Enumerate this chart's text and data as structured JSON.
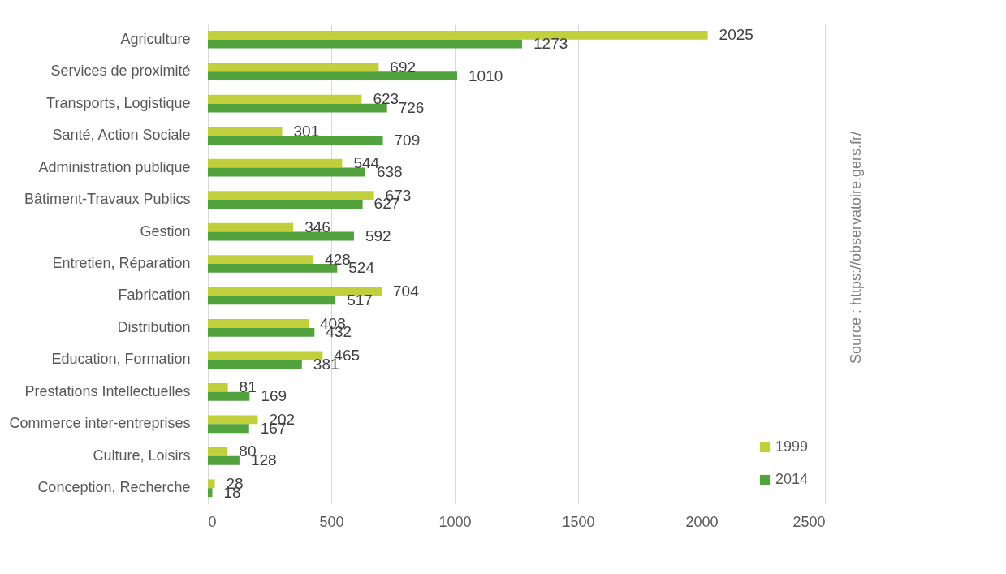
{
  "chart_data": {
    "type": "bar",
    "orientation": "horizontal",
    "categories": [
      "Agriculture",
      "Services de proximité",
      "Transports, Logistique",
      "Santé, Action Sociale",
      "Administration publique",
      "Bâtiment-Travaux Publics",
      "Gestion",
      "Entretien, Réparation",
      "Fabrication",
      "Distribution",
      "Education, Formation",
      "Prestations Intellectuelles",
      "Commerce inter-entreprises",
      "Culture, Loisirs",
      "Conception, Recherche"
    ],
    "series": [
      {
        "name": "1999",
        "color": "#c2cf3c",
        "values": [
          2025,
          692,
          623,
          301,
          544,
          673,
          346,
          428,
          704,
          408,
          465,
          81,
          202,
          80,
          28
        ]
      },
      {
        "name": "2014",
        "color": "#52a23e",
        "values": [
          1273,
          1010,
          726,
          709,
          638,
          627,
          592,
          524,
          517,
          432,
          381,
          169,
          167,
          128,
          18
        ]
      }
    ],
    "xlim": [
      0,
      2500
    ],
    "xticks": [
      0,
      500,
      1000,
      1500,
      2000,
      2500
    ],
    "grid": "x",
    "legend": "bottom right",
    "data_labels": true,
    "annotations": [
      "Source : https://observatoire.gers.fr/"
    ]
  }
}
